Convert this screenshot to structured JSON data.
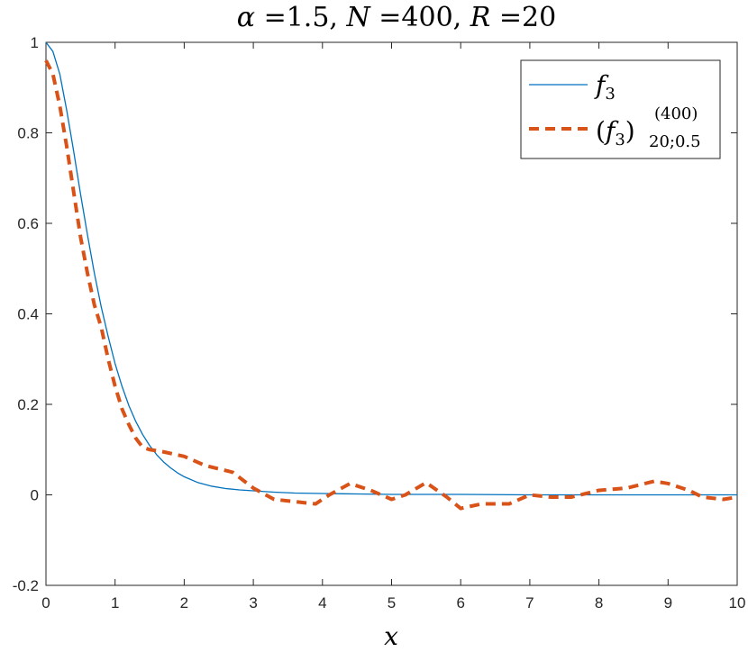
{
  "chart_data": {
    "type": "line",
    "title": {
      "alpha_sym": "α",
      "alpha_val": " =1.5, ",
      "n_sym": "N",
      "n_val": " =400, ",
      "r_sym": "R",
      "r_val": " =20"
    },
    "xlabel": "x",
    "ylabel": "",
    "xlim": [
      0,
      10
    ],
    "ylim": [
      -0.2,
      1
    ],
    "xticks": [
      0,
      1,
      2,
      3,
      4,
      5,
      6,
      7,
      8,
      9,
      10
    ],
    "yticks": [
      -0.2,
      0,
      0.2,
      0.4,
      0.6,
      0.8,
      1
    ],
    "grid": false,
    "legend_position": "top-right",
    "legend": {
      "s1_func": "f",
      "s1_sub": "3",
      "s2_open": "(",
      "s2_func": "f",
      "s2_sub": "3",
      "s2_close": ")",
      "s2_sup": "(400)",
      "s2_sub2": "20;0.5"
    },
    "colors": {
      "series1": "#0072BD",
      "series2": "#D95319",
      "axis": "#262626"
    },
    "series": [
      {
        "style": "solid",
        "x": [
          0,
          0.1,
          0.2,
          0.3,
          0.4,
          0.5,
          0.6,
          0.7,
          0.8,
          0.9,
          1.0,
          1.1,
          1.2,
          1.3,
          1.4,
          1.5,
          1.6,
          1.7,
          1.8,
          1.9,
          2.0,
          2.2,
          2.4,
          2.6,
          2.8,
          3.0,
          3.3,
          3.6,
          4.0,
          4.5,
          5.0,
          6.0,
          7.0,
          8.0,
          9.0,
          10.0
        ],
        "y": [
          1.0,
          0.98,
          0.93,
          0.85,
          0.76,
          0.665,
          0.575,
          0.49,
          0.415,
          0.35,
          0.29,
          0.24,
          0.197,
          0.162,
          0.133,
          0.109,
          0.089,
          0.073,
          0.06,
          0.049,
          0.04,
          0.027,
          0.019,
          0.014,
          0.011,
          0.009,
          0.006,
          0.004,
          0.003,
          0.002,
          0.001,
          0.001,
          0.0,
          0.0,
          0.0,
          0.0
        ]
      },
      {
        "style": "dashed",
        "x": [
          0,
          0.1,
          0.2,
          0.3,
          0.4,
          0.5,
          0.6,
          0.7,
          0.8,
          0.9,
          1.0,
          1.1,
          1.2,
          1.3,
          1.4,
          1.5,
          1.7,
          2.0,
          2.3,
          2.7,
          3.0,
          3.3,
          3.6,
          3.9,
          4.1,
          4.4,
          4.7,
          5.0,
          5.2,
          5.5,
          5.8,
          6.0,
          6.3,
          6.7,
          7.0,
          7.3,
          7.6,
          8.0,
          8.4,
          8.8,
          9.0,
          9.3,
          9.5,
          9.8,
          10.0
        ],
        "y": [
          0.96,
          0.93,
          0.86,
          0.77,
          0.67,
          0.57,
          0.49,
          0.42,
          0.37,
          0.3,
          0.24,
          0.19,
          0.155,
          0.125,
          0.105,
          0.1,
          0.095,
          0.085,
          0.065,
          0.05,
          0.015,
          -0.01,
          -0.015,
          -0.02,
          0.0,
          0.025,
          0.01,
          -0.01,
          0.0,
          0.027,
          -0.005,
          -0.03,
          -0.02,
          -0.02,
          0.0,
          -0.005,
          -0.005,
          0.01,
          0.015,
          0.03,
          0.025,
          0.01,
          -0.005,
          -0.01,
          -0.005
        ]
      }
    ]
  }
}
